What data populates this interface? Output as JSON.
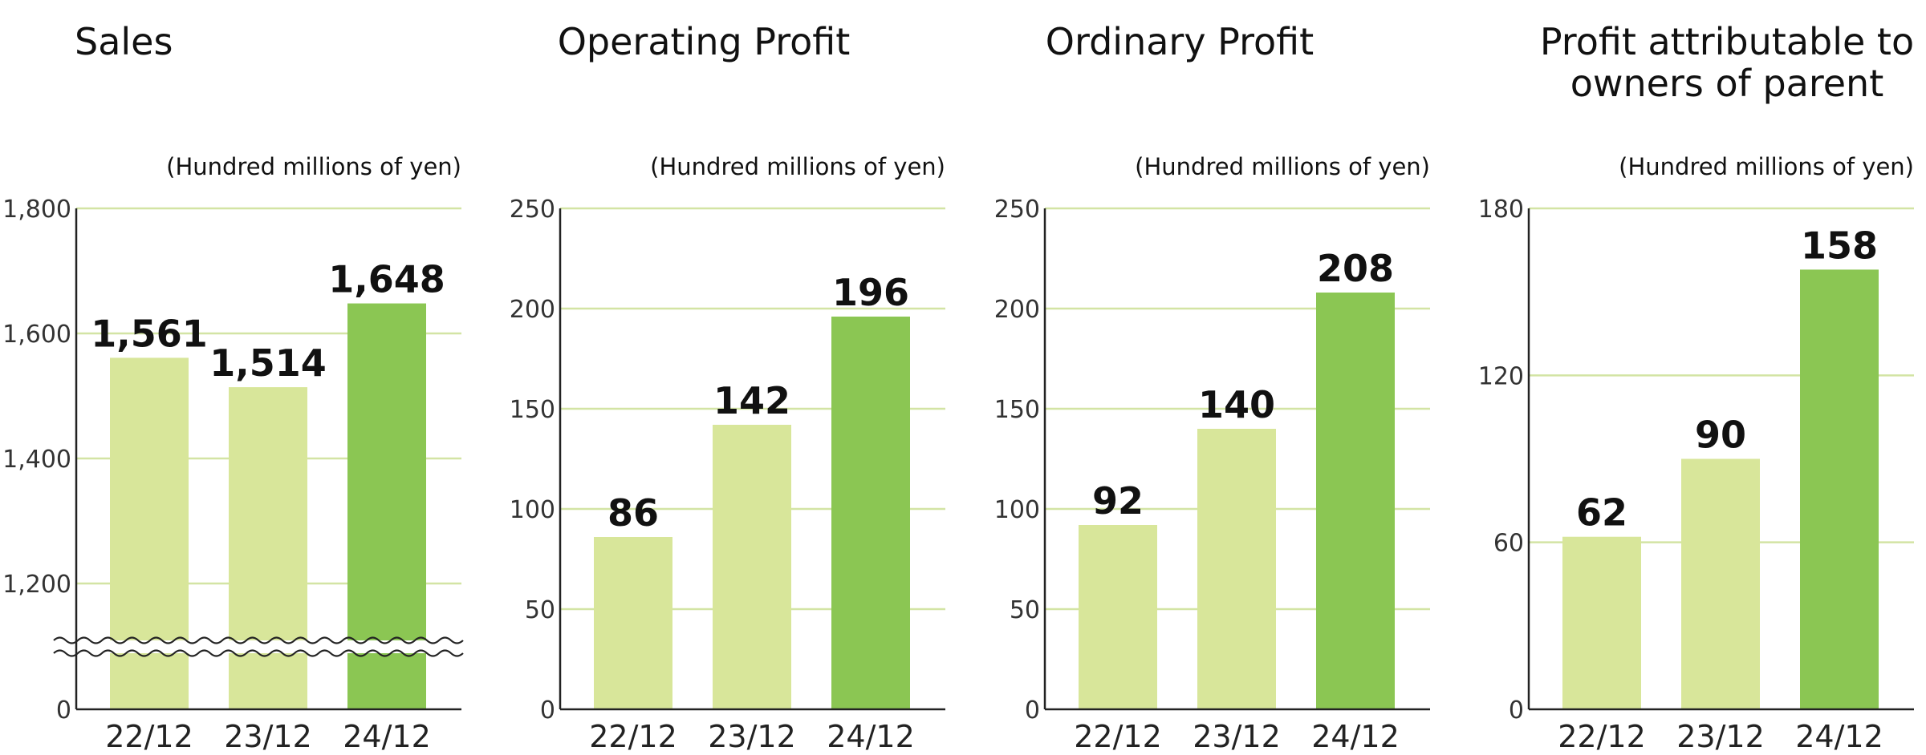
{
  "colors": {
    "bar_prior": "#d8e69a",
    "bar_latest": "#8bc653",
    "grid": "#d3e4a4",
    "axis": "#222222"
  },
  "chart_data": [
    {
      "type": "bar",
      "title": "Sales",
      "unit": "(Hundred millions of yen)",
      "categories": [
        "22/12",
        "23/12",
        "24/12"
      ],
      "values": [
        1561,
        1514,
        1648
      ],
      "value_labels": [
        "1,561",
        "1,514",
        "1,648"
      ],
      "ylim": [
        0,
        1800
      ],
      "axis_break": true,
      "yticks": [
        0,
        1200,
        1400,
        1600,
        1800
      ],
      "ytick_labels": [
        "0",
        "1,200",
        "1,400",
        "1,600",
        "1,800"
      ],
      "grid": true
    },
    {
      "type": "bar",
      "title": "Operating Profit",
      "unit": "(Hundred millions of yen)",
      "categories": [
        "22/12",
        "23/12",
        "24/12"
      ],
      "values": [
        86,
        142,
        196
      ],
      "value_labels": [
        "86",
        "142",
        "196"
      ],
      "ylim": [
        0,
        250
      ],
      "axis_break": false,
      "yticks": [
        0,
        50,
        100,
        150,
        200,
        250
      ],
      "ytick_labels": [
        "0",
        "50",
        "100",
        "150",
        "200",
        "250"
      ],
      "grid": true
    },
    {
      "type": "bar",
      "title": "Ordinary Profit",
      "unit": "(Hundred millions of yen)",
      "categories": [
        "22/12",
        "23/12",
        "24/12"
      ],
      "values": [
        92,
        140,
        208
      ],
      "value_labels": [
        "92",
        "140",
        "208"
      ],
      "ylim": [
        0,
        250
      ],
      "axis_break": false,
      "yticks": [
        0,
        50,
        100,
        150,
        200,
        250
      ],
      "ytick_labels": [
        "0",
        "50",
        "100",
        "150",
        "200",
        "250"
      ],
      "grid": true
    },
    {
      "type": "bar",
      "title_lines": [
        "Profit attributable to",
        "owners of parent"
      ],
      "unit": "(Hundred millions of yen)",
      "categories": [
        "22/12",
        "23/12",
        "24/12"
      ],
      "values": [
        62,
        90,
        158
      ],
      "value_labels": [
        "62",
        "90",
        "158"
      ],
      "ylim": [
        0,
        180
      ],
      "axis_break": false,
      "yticks": [
        0,
        60,
        120,
        180
      ],
      "ytick_labels": [
        "0",
        "60",
        "120",
        "180"
      ],
      "grid": true
    }
  ]
}
